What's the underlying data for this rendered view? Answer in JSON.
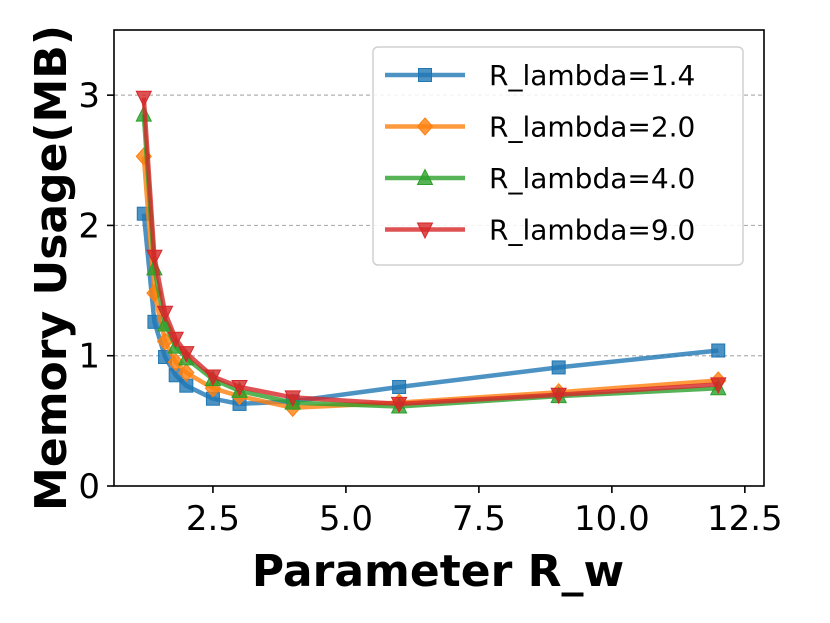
{
  "chart_data": {
    "type": "line",
    "title": "",
    "xlabel": "Parameter R_w",
    "ylabel": "Memory Usage(MB)",
    "xlim": [
      0.64,
      12.86
    ],
    "ylim": [
      0,
      3.5
    ],
    "xticks": [
      2.5,
      5.0,
      7.5,
      10.0,
      12.5
    ],
    "xtick_labels": [
      "2.5",
      "5.0",
      "7.5",
      "10.0",
      "12.5"
    ],
    "yticks": [
      0,
      1,
      2,
      3
    ],
    "ytick_labels": [
      "0",
      "1",
      "2",
      "3"
    ],
    "grid": "horizontal dashed",
    "legend_position": "upper-right",
    "x": [
      1.2,
      1.4,
      1.6,
      1.8,
      2.0,
      2.5,
      3.0,
      4.0,
      6.0,
      9.0,
      12.0
    ],
    "series": [
      {
        "name": "R_lambda=1.4",
        "color": "#1f77b4",
        "marker": "square",
        "values": [
          2.09,
          1.26,
          0.99,
          0.85,
          0.77,
          0.67,
          0.63,
          0.65,
          0.76,
          0.91,
          1.04
        ]
      },
      {
        "name": "R_lambda=2.0",
        "color": "#ff7f0e",
        "marker": "diamond",
        "values": [
          2.53,
          1.48,
          1.11,
          0.95,
          0.87,
          0.75,
          0.69,
          0.6,
          0.64,
          0.72,
          0.81
        ]
      },
      {
        "name": "R_lambda=4.0",
        "color": "#2ca02c",
        "marker": "triangle-up",
        "values": [
          2.85,
          1.67,
          1.24,
          1.07,
          0.98,
          0.82,
          0.73,
          0.64,
          0.61,
          0.69,
          0.75
        ]
      },
      {
        "name": "R_lambda=9.0",
        "color": "#d62728",
        "marker": "triangle-down",
        "values": [
          2.98,
          1.76,
          1.33,
          1.13,
          1.02,
          0.84,
          0.76,
          0.68,
          0.63,
          0.7,
          0.78
        ]
      }
    ]
  }
}
